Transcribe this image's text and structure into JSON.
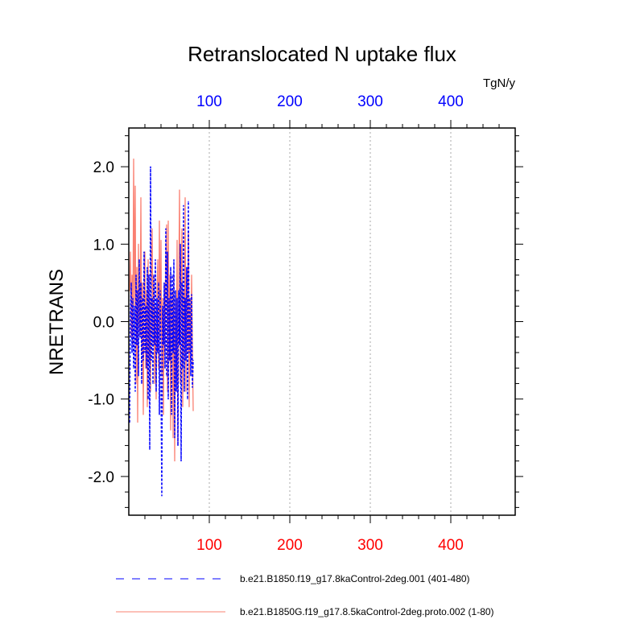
{
  "chart_data": {
    "type": "line",
    "title": "Retranslocated N uptake flux",
    "units": "TgN/y",
    "ylabel": "NRETRANS",
    "xlabel": "",
    "xlim": [
      0,
      480
    ],
    "ylim": [
      -2.5,
      2.5
    ],
    "yticks": [
      -2.0,
      -1.0,
      0.0,
      1.0,
      2.0
    ],
    "ytick_labels": [
      "-2.0",
      "-1.0",
      "0.0",
      "1.0",
      "2.0"
    ],
    "xticks_bottom": [
      100,
      200,
      300,
      400
    ],
    "xtick_labels_bottom": [
      "100",
      "200",
      "300",
      "400"
    ],
    "xticks_top": [
      100,
      200,
      300,
      400
    ],
    "xtick_labels_top": [
      "100",
      "200",
      "300",
      "400"
    ],
    "bottom_axis_color": "#ff0000",
    "top_axis_color": "#0000ff",
    "grid": "vertical dotted at major x ticks",
    "legend_placement": "bottom",
    "series": [
      {
        "name": "b.e21.B1850.f19_g17.8kaControl-2deg.001 (401-480)",
        "color": "#0000ff",
        "dash": "dashed",
        "x": [
          1,
          2,
          3,
          4,
          5,
          6,
          7,
          8,
          9,
          10,
          11,
          12,
          13,
          14,
          15,
          16,
          17,
          18,
          19,
          20,
          21,
          22,
          23,
          24,
          25,
          26,
          27,
          28,
          29,
          30,
          31,
          32,
          33,
          34,
          35,
          36,
          37,
          38,
          39,
          40,
          41,
          42,
          43,
          44,
          45,
          46,
          47,
          48,
          49,
          50,
          51,
          52,
          53,
          54,
          55,
          56,
          57,
          58,
          59,
          60,
          61,
          62,
          63,
          64,
          65,
          66,
          67,
          68,
          69,
          70,
          71,
          72,
          73,
          74,
          75,
          76,
          77,
          78,
          79,
          80
        ],
        "values": [
          -1.3,
          0.1,
          0.5,
          -0.4,
          0.3,
          -0.6,
          0.2,
          -0.9,
          0.6,
          -0.3,
          0.4,
          -0.7,
          0.8,
          -0.2,
          0.5,
          -0.8,
          0.3,
          -0.5,
          0.9,
          -0.4,
          0.2,
          -0.6,
          0.7,
          -1.0,
          0.6,
          -1.65,
          2.0,
          -0.5,
          0.3,
          -0.8,
          0.6,
          -0.3,
          0.8,
          -0.9,
          0.3,
          -0.4,
          0.5,
          -1.2,
          0.4,
          -0.8,
          -2.25,
          0.2,
          -0.3,
          0.5,
          -0.6,
          1.2,
          -0.7,
          0.9,
          -1.0,
          0.3,
          -0.5,
          0.7,
          -1.2,
          0.6,
          -0.4,
          0.8,
          -1.5,
          0.4,
          -0.9,
          0.3,
          -1.6,
          0.4,
          -0.3,
          1.0,
          -1.8,
          0.5,
          -0.6,
          1.5,
          -0.9,
          0.3,
          -0.5,
          0.7,
          -1.0,
          1.55,
          -0.4,
          0.3,
          -0.7,
          0.35,
          -0.85,
          -0.5
        ]
      },
      {
        "name": "b.e21.B1850G.f19_g17.8.5kaControl-2deg.proto.002 (1-80)",
        "color": "#fa8072",
        "dash": "solid",
        "x": [
          1,
          2,
          3,
          4,
          5,
          6,
          7,
          8,
          9,
          10,
          11,
          12,
          13,
          14,
          15,
          16,
          17,
          18,
          19,
          20,
          21,
          22,
          23,
          24,
          25,
          26,
          27,
          28,
          29,
          30,
          31,
          32,
          33,
          34,
          35,
          36,
          37,
          38,
          39,
          40,
          41,
          42,
          43,
          44,
          45,
          46,
          47,
          48,
          49,
          50,
          51,
          52,
          53,
          54,
          55,
          56,
          57,
          58,
          59,
          60,
          61,
          62,
          63,
          64,
          65,
          66,
          67,
          68,
          69,
          70,
          71,
          72,
          73,
          74,
          75,
          76,
          77,
          78,
          79,
          80
        ],
        "values": [
          0.4,
          0.9,
          -0.2,
          0.6,
          -0.3,
          2.1,
          0.2,
          1.75,
          -0.8,
          0.7,
          -1.3,
          1.0,
          0.0,
          -0.2,
          1.6,
          -0.4,
          0.5,
          -1.2,
          0.3,
          0.9,
          -0.6,
          0.4,
          -1.1,
          0.8,
          -0.5,
          0.3,
          -0.9,
          0.5,
          1.2,
          -0.3,
          0.6,
          -0.8,
          0.2,
          -1.0,
          0.4,
          0.8,
          -0.6,
          1.3,
          -0.2,
          1.05,
          -0.7,
          0.3,
          -1.2,
          0.5,
          -0.4,
          0.8,
          1.25,
          -0.9,
          1.3,
          -0.5,
          0.6,
          -1.4,
          0.2,
          0.4,
          -1.5,
          0.6,
          -1.8,
          0.3,
          -0.7,
          1.05,
          -1.6,
          0.4,
          1.7,
          -0.8,
          0.5,
          1.2,
          -1.1,
          0.4,
          -0.5,
          1.6,
          -0.9,
          0.7,
          -0.4,
          1.15,
          -1.1,
          0.3,
          -0.5,
          0.6,
          -0.3,
          -1.15
        ]
      }
    ]
  }
}
